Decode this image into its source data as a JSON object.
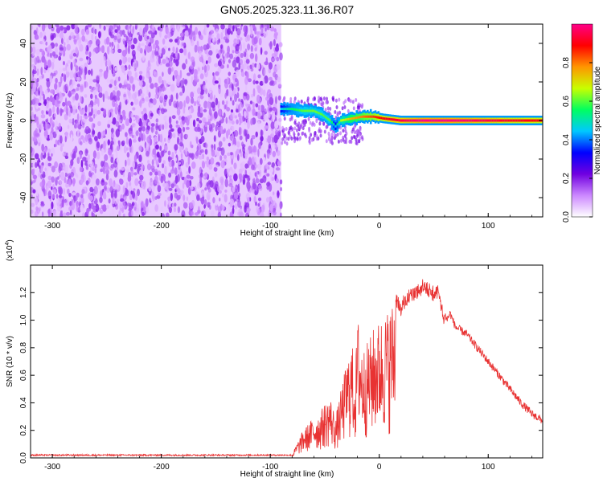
{
  "title": "GN05.2025.323.11.36.R07",
  "chart_data": [
    {
      "type": "heatmap",
      "xlabel": "Height of straight line (km)",
      "ylabel": "Frequency (Hz)",
      "xlim": [
        -320,
        150
      ],
      "ylim": [
        -50,
        50
      ],
      "xticks": [
        -300,
        -200,
        -100,
        0,
        100
      ],
      "yticks": [
        -40,
        -20,
        0,
        20,
        40
      ],
      "xtick_labels": [
        "-300",
        "-200",
        "-100",
        "0",
        "100"
      ],
      "ytick_labels": [
        "-40",
        "-20",
        "0",
        "20",
        "40"
      ],
      "colorbar": {
        "label": "Normalized spectral amplitude",
        "range": [
          0,
          1
        ],
        "ticks": [
          0.0,
          0.2,
          0.4,
          0.6,
          0.8
        ],
        "tick_labels": [
          "0.0",
          "0.2",
          "0.4",
          "0.6",
          "0.8"
        ],
        "colors": [
          "#ffffff",
          "#cc88ff",
          "#7000e0",
          "#0000ff",
          "#00c8ff",
          "#00ff60",
          "#c8ff00",
          "#ff9600",
          "#ff0000",
          "#ff0088"
        ]
      },
      "noise_region": {
        "x_range": [
          -320,
          -90
        ],
        "y_range": [
          -50,
          50
        ],
        "amplitude_range": [
          0.05,
          0.2
        ]
      },
      "ridge": [
        {
          "x": -90,
          "y": 6,
          "amp": 0.45
        },
        {
          "x": -80,
          "y": 6,
          "amp": 0.55
        },
        {
          "x": -70,
          "y": 5,
          "amp": 0.6
        },
        {
          "x": -60,
          "y": 5,
          "amp": 0.62
        },
        {
          "x": -52,
          "y": 3,
          "amp": 0.6
        },
        {
          "x": -45,
          "y": 0,
          "amp": 0.6
        },
        {
          "x": -40,
          "y": -3,
          "amp": 0.45
        },
        {
          "x": -35,
          "y": 0,
          "amp": 0.65
        },
        {
          "x": -25,
          "y": 1,
          "amp": 0.75
        },
        {
          "x": -15,
          "y": 2,
          "amp": 0.8
        },
        {
          "x": -5,
          "y": 2,
          "amp": 0.85
        },
        {
          "x": 5,
          "y": 1,
          "amp": 0.9
        },
        {
          "x": 20,
          "y": 0,
          "amp": 0.95
        },
        {
          "x": 40,
          "y": 0,
          "amp": 1.0
        },
        {
          "x": 60,
          "y": 0,
          "amp": 1.0
        },
        {
          "x": 80,
          "y": 0,
          "amp": 0.98
        },
        {
          "x": 100,
          "y": 0,
          "amp": 0.95
        },
        {
          "x": 120,
          "y": 0,
          "amp": 0.92
        },
        {
          "x": 150,
          "y": 0,
          "amp": 0.9
        }
      ]
    },
    {
      "type": "line",
      "xlabel": "Height of straight line (km)",
      "ylabel": "SNR (10 * v/v)",
      "scale_label": "(x10",
      "scale_exponent": "4",
      "scale_label_close": ")",
      "xlim": [
        -320,
        150
      ],
      "ylim": [
        0,
        1.4
      ],
      "xticks": [
        -300,
        -200,
        -100,
        0,
        100
      ],
      "yticks": [
        0.0,
        0.2,
        0.4,
        0.6,
        0.8,
        1.0,
        1.2
      ],
      "xtick_labels": [
        "-300",
        "-200",
        "-100",
        "0",
        "100"
      ],
      "ytick_labels": [
        "0.0",
        "0.2",
        "0.4",
        "0.6",
        "0.8",
        "1.0",
        "1.2"
      ],
      "color": "#e83232",
      "series": [
        {
          "x": [
            -320,
            -100,
            -80,
            -76,
            -70,
            -65,
            -60,
            -55,
            -50,
            -45,
            -40,
            -35,
            -30,
            -25,
            -22,
            -20,
            -15,
            -10,
            -5,
            0,
            5,
            10,
            15,
            20,
            25,
            30,
            35,
            40,
            45,
            50,
            55,
            58,
            62,
            65,
            70,
            80,
            90,
            100,
            110,
            120,
            130,
            140,
            150
          ],
          "y": [
            0.02,
            0.02,
            0.02,
            0.1,
            0.2,
            0.25,
            0.3,
            0.32,
            0.4,
            0.45,
            0.3,
            0.5,
            0.7,
            0.85,
            0.6,
            1.05,
            0.8,
            0.85,
            0.95,
            1.0,
            1.05,
            1.1,
            1.2,
            1.15,
            1.22,
            1.25,
            1.27,
            1.3,
            1.28,
            1.25,
            1.27,
            1.1,
            1.0,
            1.05,
            0.95,
            0.9,
            0.8,
            0.7,
            0.6,
            0.5,
            0.4,
            0.32,
            0.27
          ]
        }
      ]
    }
  ]
}
